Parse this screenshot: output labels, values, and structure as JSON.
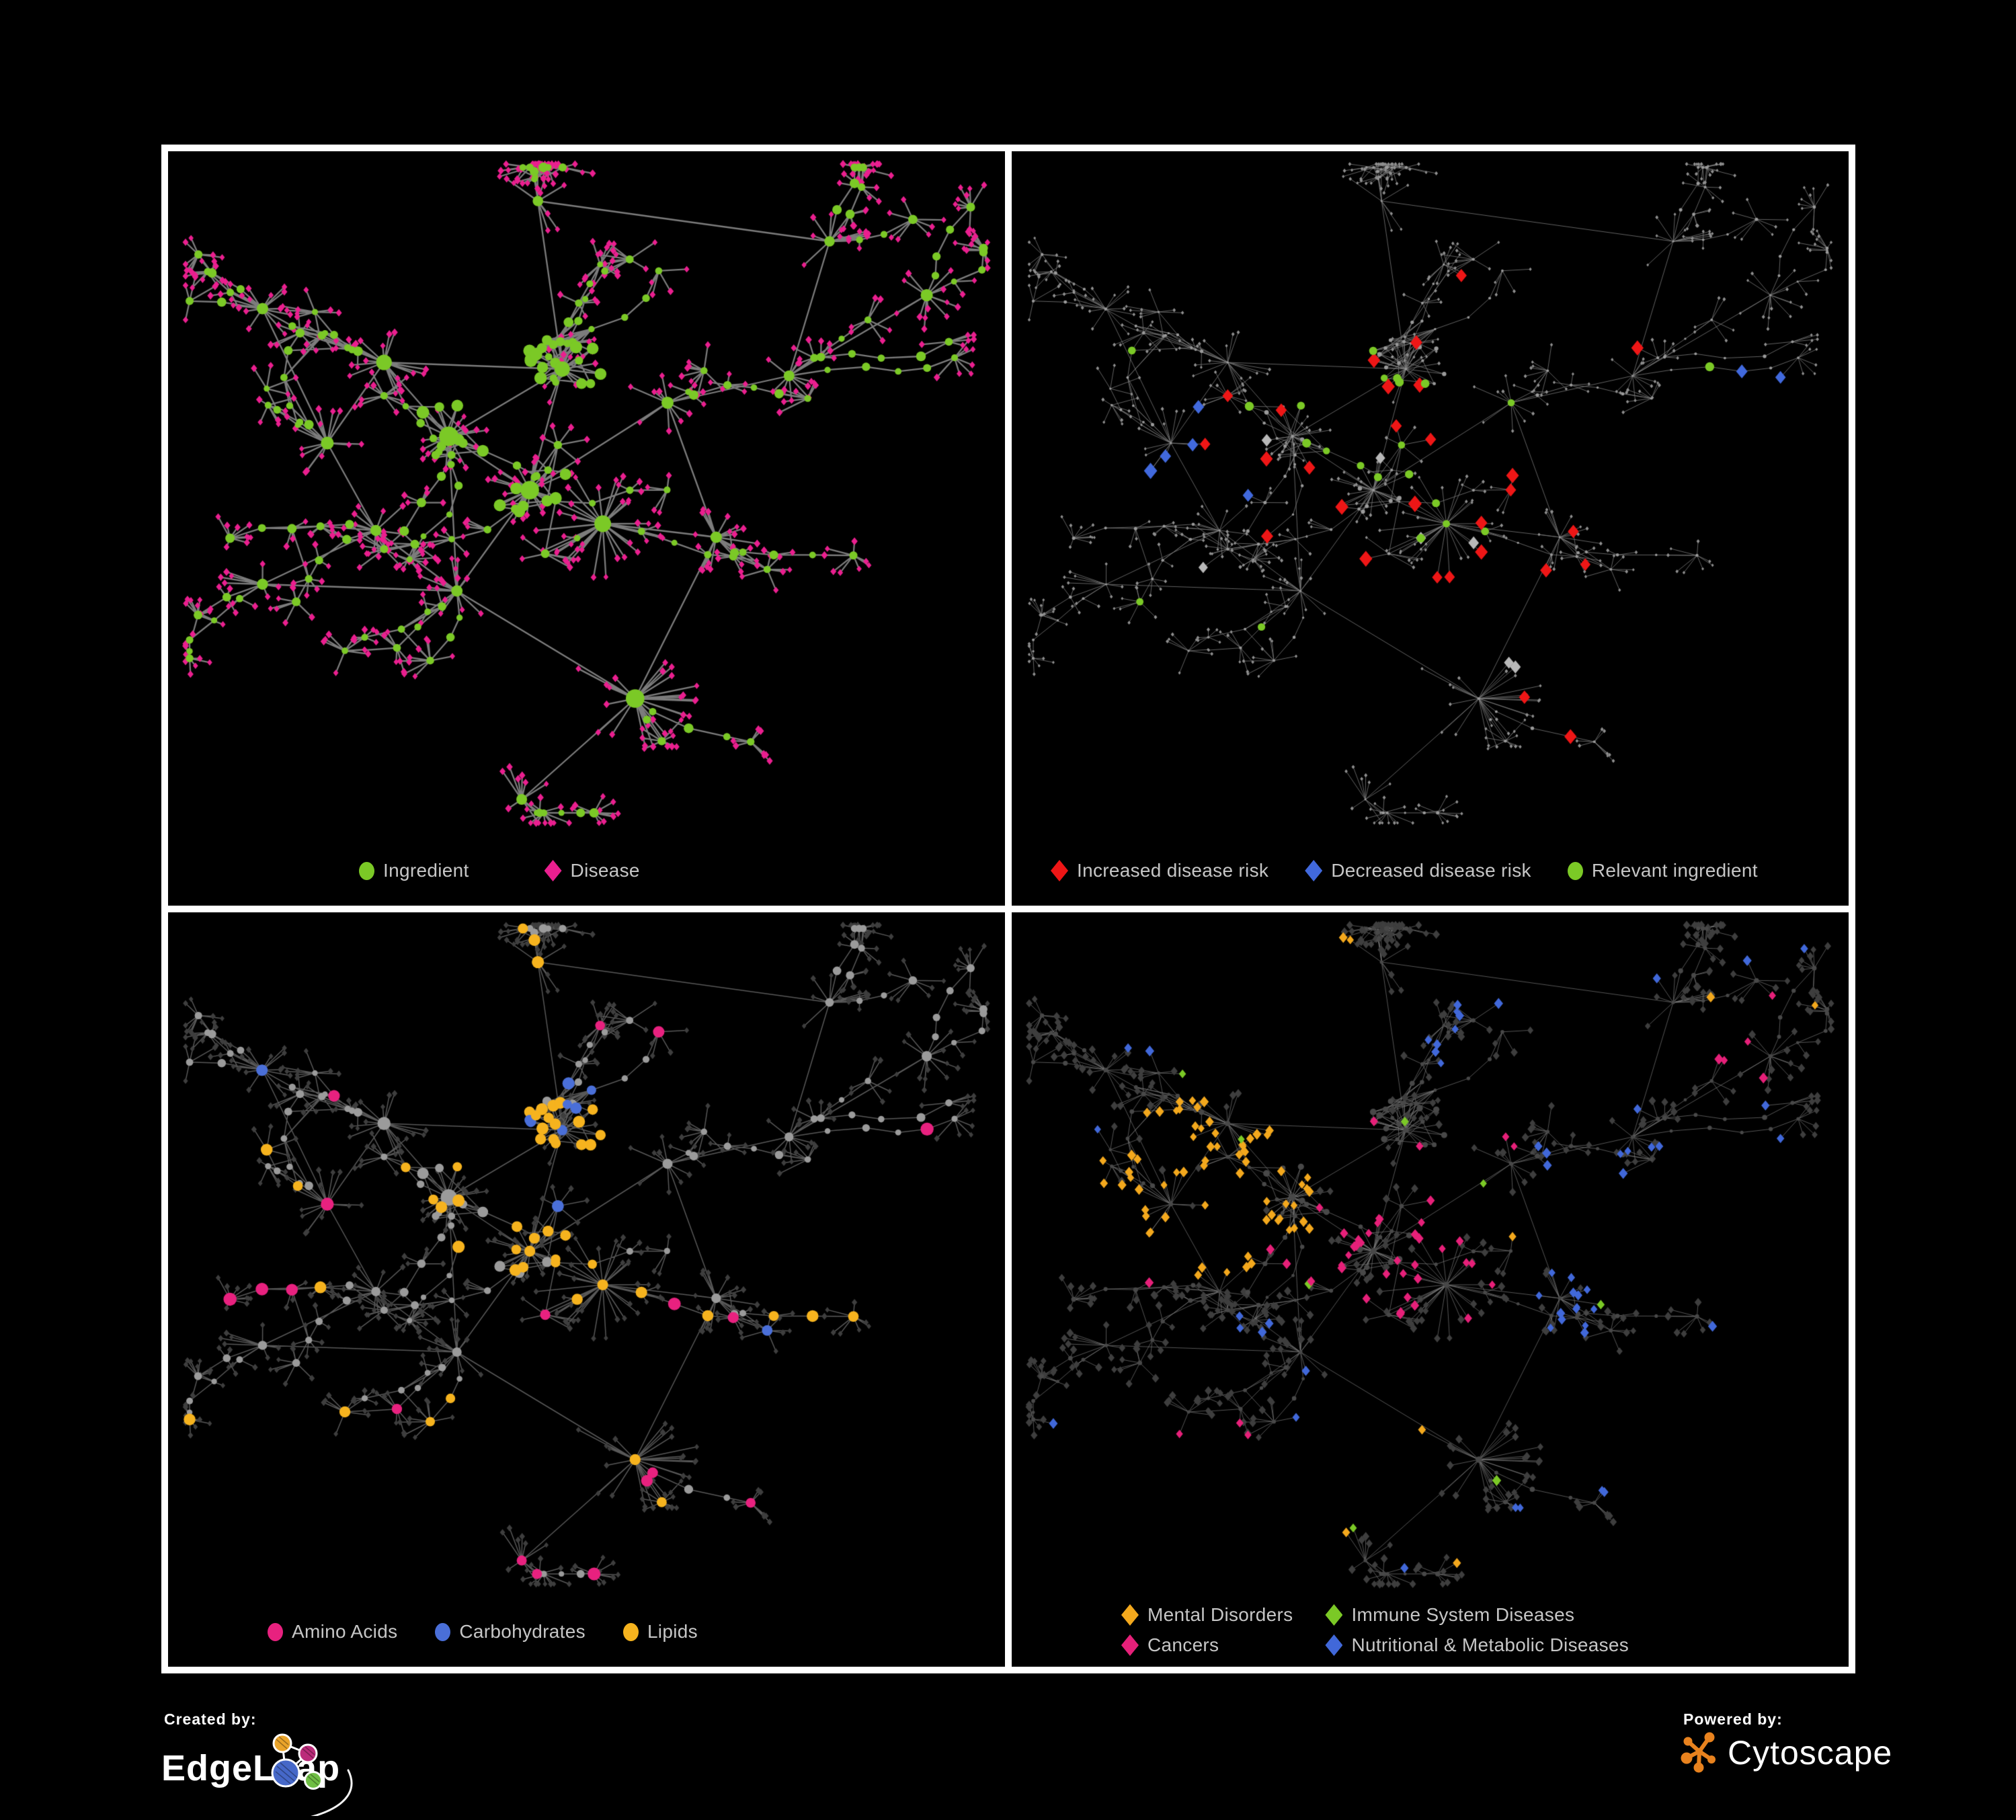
{
  "page": {
    "background": "#000000",
    "frame_color": "#ffffff"
  },
  "panels": [
    {
      "id": "ingredient-disease-network",
      "legend": [
        {
          "label": "Ingredient",
          "shape": "circle",
          "color": "#7bc926"
        },
        {
          "label": "Disease",
          "shape": "diamond",
          "color": "#ea1f8f"
        }
      ]
    },
    {
      "id": "disease-risk-network",
      "legend": [
        {
          "label": "Increased disease risk",
          "shape": "diamond",
          "color": "#ee1616"
        },
        {
          "label": "Decreased disease risk",
          "shape": "diamond",
          "color": "#4169dd"
        },
        {
          "label": "Relevant ingredient",
          "shape": "circle",
          "color": "#7bc926"
        }
      ],
      "unlabeled_diamond_color": "#b8b8b8"
    },
    {
      "id": "nutrient-class-network",
      "legend": [
        {
          "label": "Amino Acids",
          "shape": "circle",
          "color": "#e8217f"
        },
        {
          "label": "Carbohydrates",
          "shape": "circle",
          "color": "#4a6fd8"
        },
        {
          "label": "Lipids",
          "shape": "circle",
          "color": "#f6b31e"
        }
      ]
    },
    {
      "id": "disease-category-network",
      "legend": [
        {
          "label": "Mental Disorders",
          "shape": "diamond",
          "color": "#f3a81d"
        },
        {
          "label": "Immune System Diseases",
          "shape": "diamond",
          "color": "#7bc926"
        },
        {
          "label": "Cancers",
          "shape": "diamond",
          "color": "#e62079"
        },
        {
          "label": "Nutritional & Metabolic Diseases",
          "shape": "diamond",
          "color": "#4168d9"
        }
      ]
    }
  ],
  "network_style": {
    "edge_color": "#878787",
    "muted_edge_color": "#7a7a7a",
    "muted_node_color": "#9a9a9a",
    "gray_circle_color": "#9b9b9b",
    "dark_diamond_color": "#3e3e3e",
    "dark_circle_color": "#484848"
  },
  "footer": {
    "created_by": {
      "label": "Created by:",
      "name": "EdgeLeap",
      "logo_colors": {
        "orange": "#eaa42a",
        "pink": "#bb2b7a",
        "blue": "#4668c8",
        "green": "#6fbe44"
      }
    },
    "powered_by": {
      "label": "Powered by:",
      "name": "Cytoscape",
      "logo_color": "#e8821e"
    }
  }
}
